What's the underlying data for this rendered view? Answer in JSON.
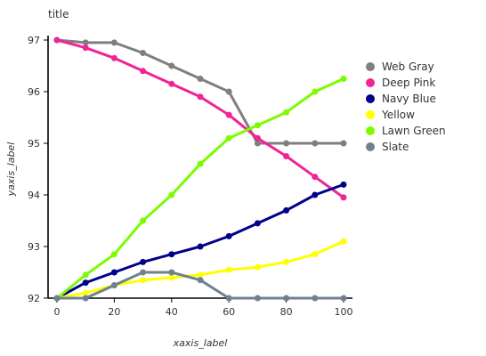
{
  "chart_data": {
    "type": "line",
    "title": "title",
    "xlabel": "xaxis_label",
    "ylabel": "yaxis_label",
    "xlim": [
      0,
      100
    ],
    "ylim": [
      92,
      97
    ],
    "x_ticks": [
      0,
      20,
      40,
      60,
      80,
      100
    ],
    "y_ticks": [
      92,
      93,
      94,
      95,
      96,
      97
    ],
    "grid": false,
    "legend_position": "right",
    "series": [
      {
        "name": "Web Gray",
        "color": "#7f7f7f",
        "x": [
          0,
          10,
          20,
          30,
          40,
          50,
          60,
          70,
          80,
          90,
          100
        ],
        "y": [
          97.0,
          96.95,
          96.95,
          96.75,
          96.5,
          96.25,
          96.0,
          95.0,
          95.0,
          95.0,
          95.0
        ]
      },
      {
        "name": "Deep Pink",
        "color": "#f02496",
        "x": [
          0,
          10,
          20,
          30,
          40,
          50,
          60,
          70,
          80,
          90,
          100
        ],
        "y": [
          97.0,
          96.85,
          96.65,
          96.4,
          96.15,
          95.9,
          95.55,
          95.1,
          94.75,
          94.35,
          93.95
        ]
      },
      {
        "name": "Navy Blue",
        "color": "#00008b",
        "x": [
          0,
          10,
          20,
          30,
          40,
          50,
          60,
          70,
          80,
          90,
          100
        ],
        "y": [
          92.0,
          92.3,
          92.5,
          92.7,
          92.85,
          93.0,
          93.2,
          93.45,
          93.7,
          94.0,
          94.2
        ]
      },
      {
        "name": "Yellow",
        "color": "#ffff00",
        "x": [
          0,
          10,
          20,
          30,
          40,
          50,
          60,
          70,
          80,
          90,
          100
        ],
        "y": [
          92.0,
          92.1,
          92.25,
          92.35,
          92.4,
          92.45,
          92.55,
          92.6,
          92.7,
          92.85,
          93.1
        ]
      },
      {
        "name": "Lawn Green",
        "color": "#7cfc00",
        "x": [
          0,
          10,
          20,
          30,
          40,
          50,
          60,
          70,
          80,
          90,
          100
        ],
        "y": [
          92.0,
          92.45,
          92.85,
          93.5,
          94.0,
          94.6,
          95.1,
          95.35,
          95.6,
          96.0,
          96.25
        ]
      },
      {
        "name": "Slate",
        "color": "#708090",
        "x": [
          0,
          10,
          20,
          30,
          40,
          50,
          60,
          70,
          80,
          90,
          100
        ],
        "y": [
          92.0,
          92.0,
          92.25,
          92.5,
          92.5,
          92.35,
          92.0,
          92.0,
          92.0,
          92.0,
          92.0
        ]
      }
    ]
  }
}
